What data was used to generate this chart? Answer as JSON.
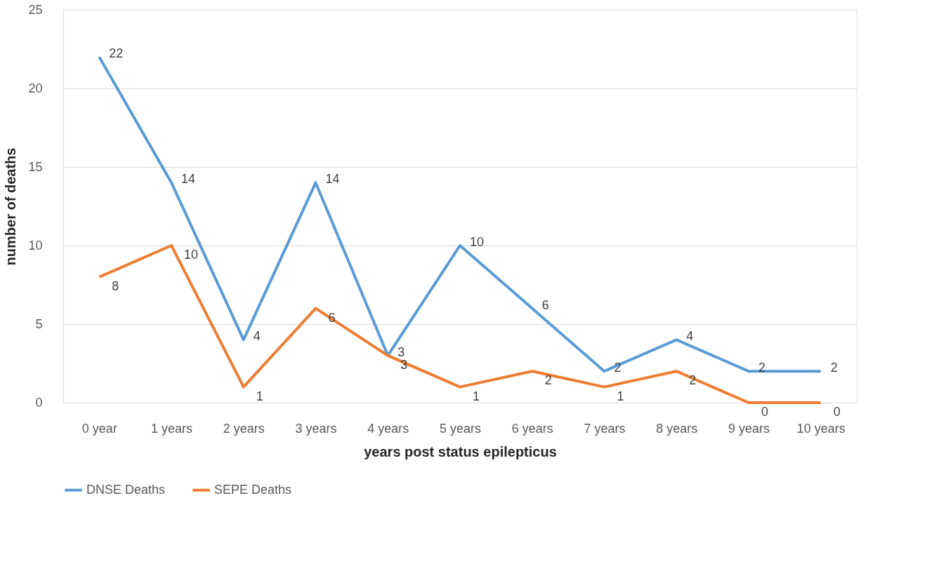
{
  "chart_data": {
    "type": "line",
    "xlabel": "years post status epilepticus",
    "ylabel": "number of deaths",
    "categories": [
      "0 year",
      "1 years",
      "2 years",
      "3 years",
      "4 years",
      "5 years",
      "6 years",
      "7 years",
      "8 years",
      "9 years",
      "10 years"
    ],
    "series": [
      {
        "name": "DNSE Deaths",
        "color": "#5b9bd5",
        "values": [
          22,
          14,
          4,
          14,
          3,
          10,
          6,
          2,
          4,
          2,
          2
        ]
      },
      {
        "name": "SEPE Deaths",
        "color": "#ed7d31",
        "values": [
          8,
          10,
          1,
          6,
          3,
          1,
          2,
          1,
          2,
          0,
          0
        ]
      }
    ],
    "ylim": [
      0,
      25
    ],
    "yticks": [
      0,
      5,
      10,
      15,
      20,
      25
    ],
    "grid": "y",
    "legend": "bottom",
    "data_labels": true,
    "marker": "none",
    "line_style": "solid"
  }
}
